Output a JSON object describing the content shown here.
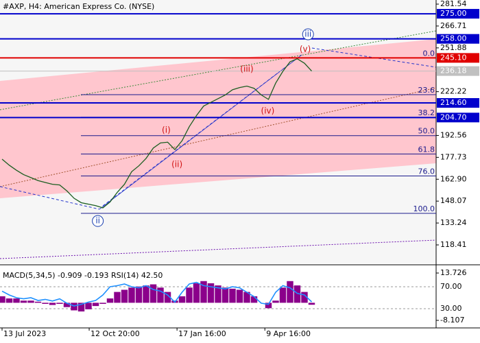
{
  "chart_data": {
    "type": "line",
    "title": "#AXP, H4:  American Express Co. (NYSE)",
    "color": "#1b5e20",
    "x": [
      0,
      1,
      2,
      3,
      4,
      5,
      6,
      7,
      8,
      9,
      10,
      11,
      12,
      13,
      14,
      15,
      16,
      17,
      18,
      19,
      20,
      21,
      22,
      23,
      24,
      25,
      26,
      27,
      28,
      29,
      30,
      31,
      32,
      33,
      34,
      35,
      36,
      37,
      38,
      39,
      40,
      41,
      42,
      43
    ],
    "values": [
      176.5,
      172.4,
      169,
      166,
      164,
      162,
      160.7,
      159.5,
      159,
      155,
      150,
      147,
      146,
      145,
      143.5,
      147.5,
      154,
      159.5,
      168,
      172,
      177,
      184,
      187.5,
      188,
      183,
      189,
      198.5,
      206,
      212.5,
      215,
      217.5,
      220,
      223.5,
      225,
      226,
      224.5,
      220,
      217,
      228,
      236,
      242.5,
      244.5,
      241.5,
      236.18
    ],
    "xlim": [
      -0.286,
      60.286
    ],
    "ylim": [
      105.86,
      284.33
    ],
    "xticks": [
      {
        "value": 0,
        "label": "13 Jul 2023"
      },
      {
        "value": 12.1,
        "label": "12 Oct 20:00"
      },
      {
        "value": 24.3,
        "label": "17 Jan 16:00"
      },
      {
        "value": 36.5,
        "label": "9 Apr 16:00"
      }
    ],
    "yticks": [
      281.54,
      266.71,
      251.88,
      222.22,
      192.56,
      177.73,
      {
        "value": 162.9,
        "label": "162.90"
      },
      148.07,
      133.24,
      118.41
    ],
    "levels": [
      {
        "value": 275,
        "label": "275.00",
        "color": "#0000cc"
      },
      {
        "value": 258,
        "label": "258.00",
        "color": "#0000cc"
      },
      {
        "value": 245.1,
        "label": "245.10",
        "color": "#e00000"
      },
      {
        "value": 236.18,
        "label": "236.18",
        "color": "#c0c0c0"
      },
      {
        "value": 214.6,
        "label": "214.60",
        "color": "#0000cc"
      },
      {
        "value": 204.7,
        "label": "204.70",
        "color": "#0000cc"
      }
    ],
    "fib_levels": [
      {
        "value": 245.1,
        "label": "0.0"
      },
      {
        "value": 220.2,
        "label": "23.6"
      },
      {
        "value": 204.9,
        "label": "38.2"
      },
      {
        "value": 192.45,
        "label": "50.0"
      },
      {
        "value": 180.0,
        "label": "61.8"
      },
      {
        "value": 165.1,
        "label": "76.0"
      },
      {
        "value": 139.8,
        "label": "100.0"
      }
    ],
    "annotations": [
      {
        "text": "iii",
        "x": 42.5,
        "y": 261.1,
        "color": "#1a3fb0",
        "circled": true
      },
      {
        "text": "ii",
        "x": 13.3,
        "y": 134.6,
        "color": "#1a3fb0",
        "circled": true
      },
      {
        "text": "(v)",
        "x": 42.1,
        "y": 250.9,
        "color": "#d01010"
      },
      {
        "text": "(iii)",
        "x": 34,
        "y": 237.4,
        "color": "#d01010"
      },
      {
        "text": "(iv)",
        "x": 36.9,
        "y": 209.0,
        "color": "#d01010"
      },
      {
        "text": "(i)",
        "x": 22.8,
        "y": 196,
        "color": "#d01010"
      },
      {
        "text": "(ii)",
        "x": 24.3,
        "y": 172.8,
        "color": "#d01010"
      }
    ],
    "indicator_label": "MACD(5,34,5) -0.909 -0.193 RSI(14) 42.50",
    "macd_color": "#8b008b",
    "rsi_color": "#1e90ff",
    "macd": [
      3,
      2,
      2,
      1,
      1,
      0.5,
      -0.5,
      -1,
      -0.5,
      -2,
      -3.5,
      -4,
      -3,
      -1.5,
      -0.5,
      2,
      5,
      6,
      7,
      7.5,
      8,
      8.5,
      7,
      5,
      1,
      3,
      7,
      9,
      10,
      9,
      8,
      7,
      6.5,
      6,
      5,
      3,
      0,
      -2.5,
      1,
      7,
      10,
      8,
      5,
      -0.909
    ],
    "rsi": [
      62,
      55,
      50,
      48,
      50,
      45,
      47,
      44,
      48,
      40,
      35,
      38,
      42,
      45,
      55,
      70,
      72,
      75,
      70,
      68,
      72,
      65,
      62,
      55,
      42,
      60,
      75,
      78,
      72,
      70,
      68,
      66,
      70,
      68,
      60,
      52,
      40,
      38,
      60,
      72,
      68,
      58,
      55,
      42.5
    ],
    "macd_ylim": [
      -11.59,
      16.89
    ],
    "macd_ticks": [
      13.726,
      -8.107
    ],
    "rsi_ylim": [
      -5,
      107.5
    ],
    "rsi_ticks": [
      {
        "value": 70,
        "label": "70.00"
      },
      {
        "value": 30,
        "label": "30.00"
      }
    ]
  }
}
